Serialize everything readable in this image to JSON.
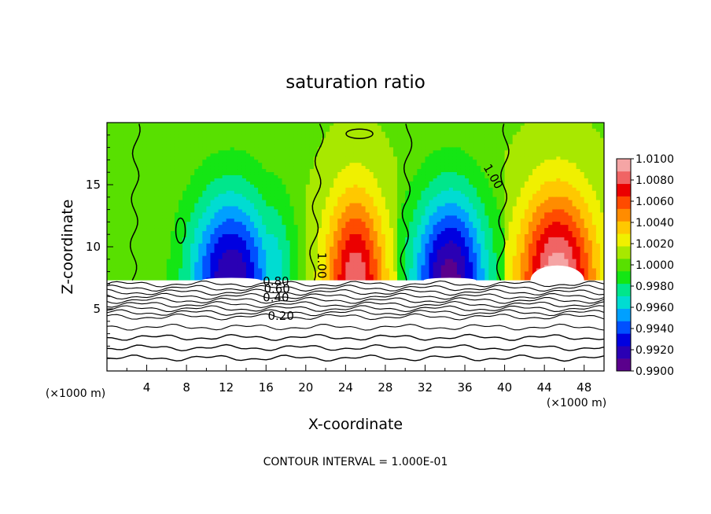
{
  "chart_data": {
    "type": "heatmap",
    "title": "saturation ratio",
    "xlabel": "X-coordinate",
    "ylabel": "Z-coordinate",
    "x_unit_left": "(×1000 m)",
    "x_unit_right": "(×1000 m)",
    "xlim": [
      0,
      50
    ],
    "ylim": [
      0,
      20
    ],
    "x_ticks": [
      "4",
      "8",
      "12",
      "16",
      "20",
      "24",
      "28",
      "32",
      "36",
      "40",
      "44",
      "48"
    ],
    "y_ticks": [
      "5",
      "10",
      "15"
    ],
    "footer": "CONTOUR INTERVAL = 1.000E-01",
    "colorbar": {
      "min": 0.99,
      "max": 1.01,
      "labels": [
        "1.0100",
        "1.0080",
        "1.0060",
        "1.0040",
        "1.0020",
        "1.0000",
        "0.9980",
        "0.9960",
        "0.9940",
        "0.9920",
        "0.9900"
      ],
      "colors": [
        "#5a008c",
        "#2a00b4",
        "#0000e0",
        "#0050ff",
        "#00a0ff",
        "#00dcd2",
        "#00e68c",
        "#14e614",
        "#58e000",
        "#a8e800",
        "#f0f000",
        "#ffc800",
        "#ff8c00",
        "#ff4b00",
        "#eb0000",
        "#f06464",
        "#f5a5a5"
      ]
    },
    "contour_labels": [
      {
        "text": "0.20"
      },
      {
        "text": "0.40"
      },
      {
        "text": "0.60"
      },
      {
        "text": "0.80"
      },
      {
        "text": "1.00"
      },
      {
        "text": "1.00"
      }
    ],
    "domes": [
      {
        "center": 4.5,
        "half_width": 2.4,
        "peak": 1.0004
      },
      {
        "center": 12.5,
        "half_width": 5.4,
        "peak": 0.9912
      },
      {
        "center": 16.5,
        "half_width": 3.0,
        "peak": 0.996
      },
      {
        "center": 25.0,
        "half_width": 3.8,
        "peak": 1.0085
      },
      {
        "center": 34.5,
        "half_width": 4.8,
        "peak": 0.9906
      },
      {
        "center": 45.3,
        "half_width": 4.9,
        "peak": 1.0098
      }
    ],
    "cloud_base": 7.3
  }
}
